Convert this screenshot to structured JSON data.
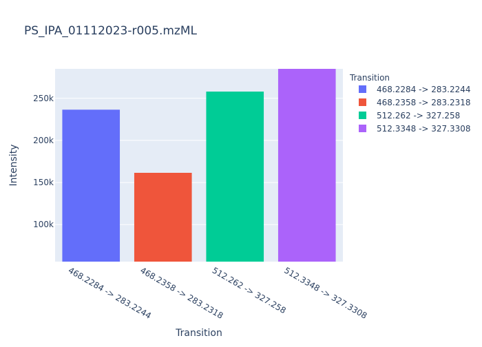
{
  "chart_data": {
    "type": "bar",
    "title": "PS_IPA_01112023-r005.mzML",
    "xlabel": "Transition",
    "ylabel": "Intensity",
    "categories": [
      "468.2284 -> 283.2244",
      "468.2358 -> 283.2318",
      "512.262 -> 327.258",
      "512.3348 -> 327.3308"
    ],
    "values": [
      236500,
      161500,
      258000,
      285000
    ],
    "colors": [
      "#636efa",
      "#ef553b",
      "#00cc96",
      "#ab63fa"
    ],
    "ylim": [
      56000,
      285000
    ],
    "yticks": [
      100000,
      150000,
      200000,
      250000
    ],
    "ytick_labels": [
      "100k",
      "150k",
      "200k",
      "250k"
    ],
    "grid": true,
    "legend": {
      "title": "Transition",
      "placement": "top-right",
      "entries": [
        "468.2284 -> 283.2244",
        "468.2358 -> 283.2318",
        "512.262 -> 327.258",
        "512.3348 -> 327.3308"
      ]
    }
  }
}
